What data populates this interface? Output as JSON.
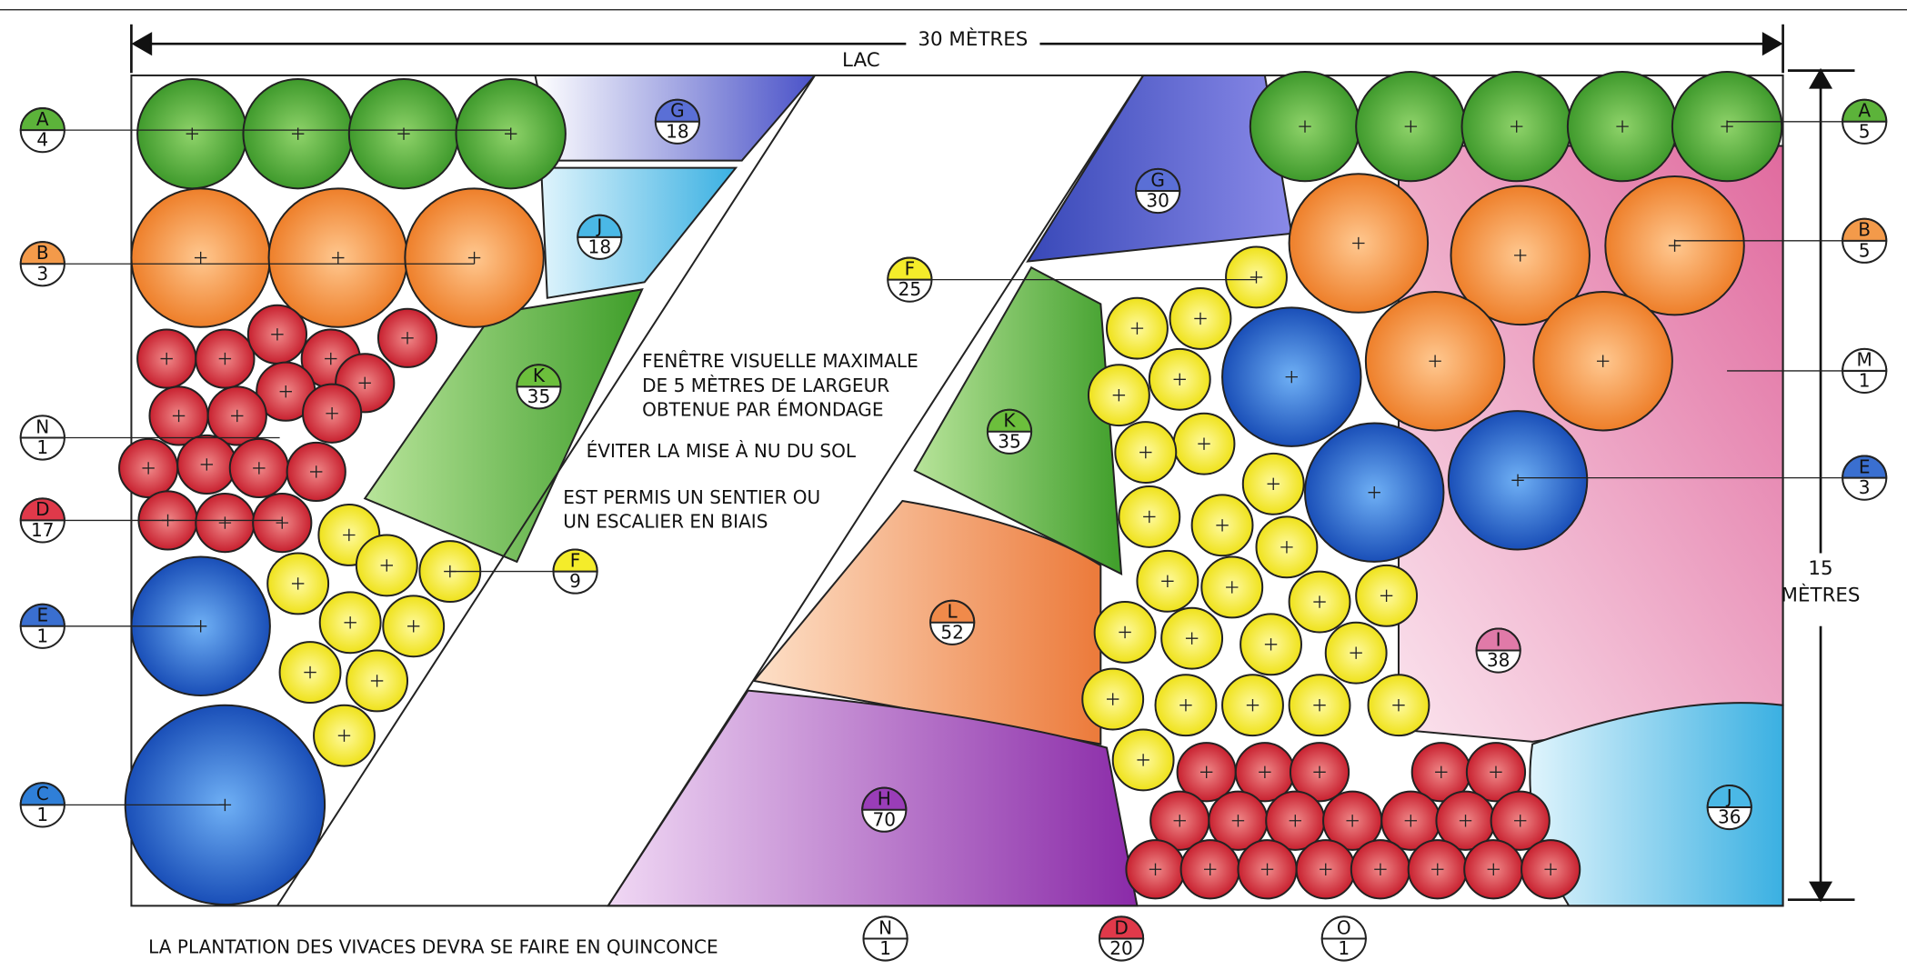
{
  "header": {
    "width_label": "30 MÈTRES",
    "top_label": "LAC",
    "height_value": "15",
    "height_unit": "MÈTRES"
  },
  "notes": [
    "FENÊTRE VISUELLE MAXIMALE",
    "DE 5 MÈTRES DE LARGEUR",
    "OBTENUE PAR ÉMONDAGE",
    "ÉVITER LA MISE À NU DU SOL",
    "EST PERMIS UN SENTIER OU",
    "UN ESCALIER EN BIAIS",
    "LA PLANTATION DES VIVACES DEVRA SE FAIRE EN QUINCONCE"
  ],
  "tags": [
    {
      "letter": "A",
      "count": "4"
    },
    {
      "letter": "B",
      "count": "3"
    },
    {
      "letter": "N",
      "count": "1"
    },
    {
      "letter": "D",
      "count": "17"
    },
    {
      "letter": "E",
      "count": "1"
    },
    {
      "letter": "C",
      "count": "1"
    },
    {
      "letter": "G",
      "count": "18"
    },
    {
      "letter": "J",
      "count": "18"
    },
    {
      "letter": "K",
      "count": "35"
    },
    {
      "letter": "F",
      "count": "9"
    },
    {
      "letter": "G",
      "count": "30"
    },
    {
      "letter": "F",
      "count": "25"
    },
    {
      "letter": "K",
      "count": "35"
    },
    {
      "letter": "L",
      "count": "52"
    },
    {
      "letter": "H",
      "count": "70"
    },
    {
      "letter": "N",
      "count": "1"
    },
    {
      "letter": "D",
      "count": "20"
    },
    {
      "letter": "O",
      "count": "1"
    },
    {
      "letter": "I",
      "count": "38"
    },
    {
      "letter": "J",
      "count": "36"
    },
    {
      "letter": "A",
      "count": "5"
    },
    {
      "letter": "B",
      "count": "5"
    },
    {
      "letter": "M",
      "count": "1"
    },
    {
      "letter": "E",
      "count": "3"
    }
  ]
}
